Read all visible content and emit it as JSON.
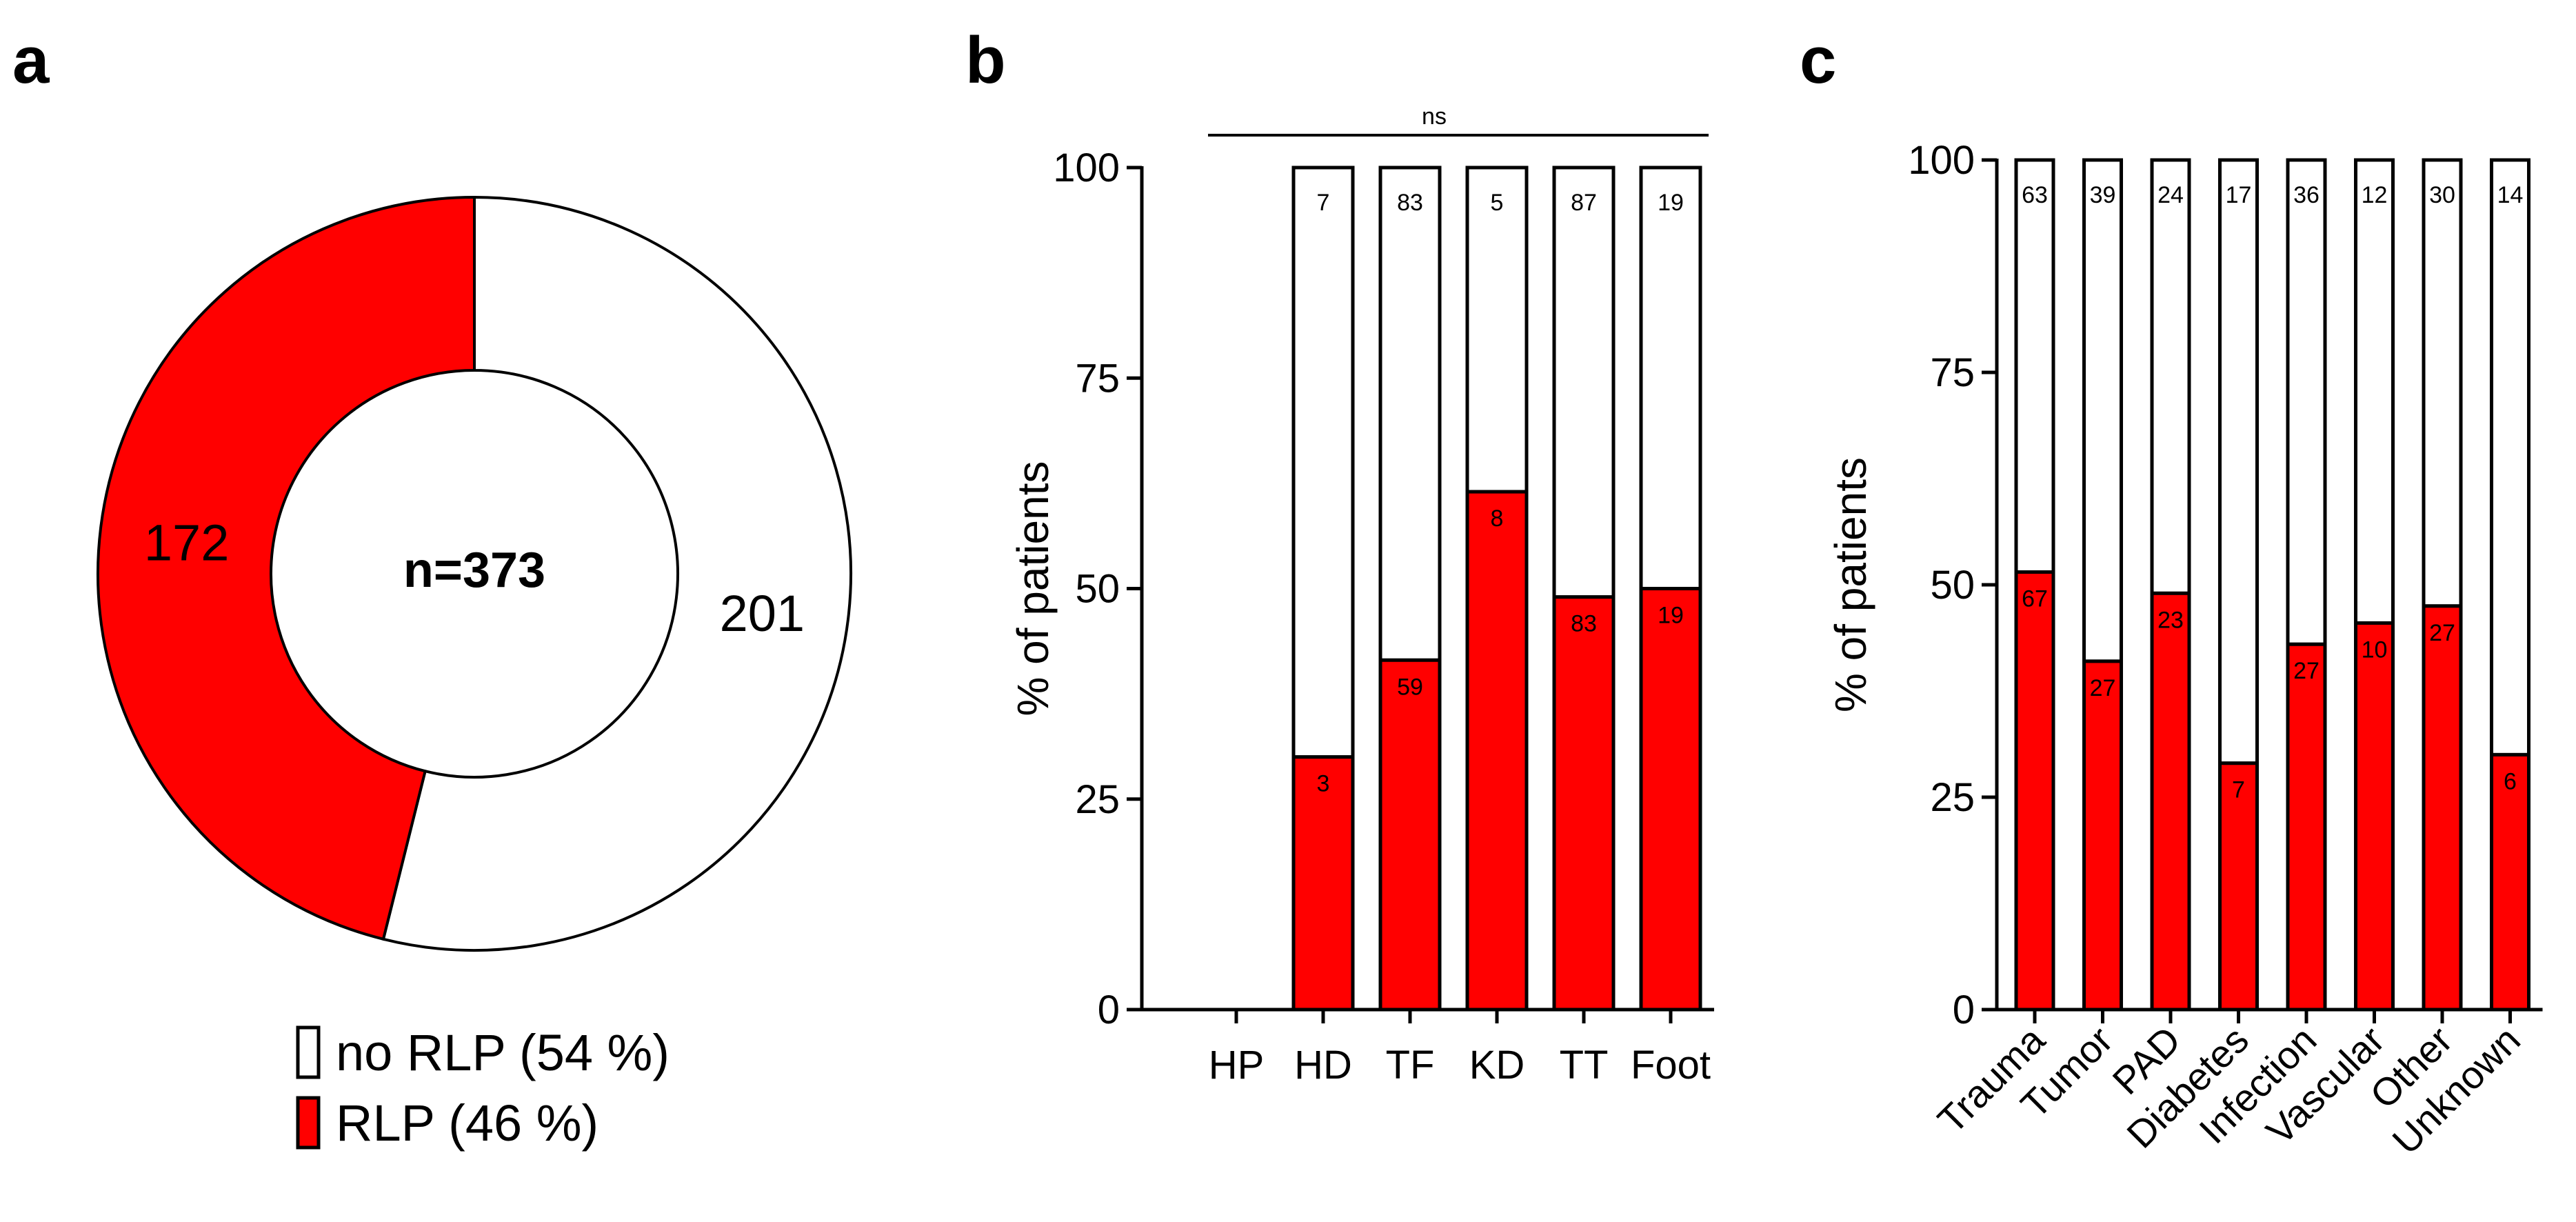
{
  "panels": {
    "a": "a",
    "b": "b",
    "c": "c"
  },
  "colors": {
    "rlp": "#ff0000",
    "no_rlp": "#ffffff",
    "stroke": "#000000"
  },
  "chart_data": [
    {
      "type": "pie",
      "panel": "a",
      "center_label": "n=373",
      "slices": [
        {
          "name": "no RLP",
          "value": 201,
          "label": "201",
          "color": "#ffffff"
        },
        {
          "name": "RLP",
          "value": 172,
          "label": "172",
          "color": "#ff0000"
        }
      ],
      "legend": [
        {
          "text": "no RLP (54 %)",
          "color": "#ffffff"
        },
        {
          "text": "RLP (46 %)",
          "color": "#ff0000"
        }
      ]
    },
    {
      "type": "bar",
      "stacked": true,
      "panel": "b",
      "ylabel": "% of patients",
      "ylim": [
        0,
        100
      ],
      "yticks": [
        0,
        25,
        50,
        75,
        100
      ],
      "categories": [
        "HP",
        "HD",
        "TF",
        "KD",
        "TT",
        "Foot"
      ],
      "significance": "ns",
      "series": [
        {
          "name": "RLP",
          "percent": [
            null,
            30,
            41.5,
            61.5,
            49,
            50
          ],
          "labels": [
            "",
            "3",
            "59",
            "8",
            "83",
            "19"
          ]
        },
        {
          "name": "no RLP",
          "percent": [
            null,
            70,
            58.5,
            38.5,
            51,
            50
          ],
          "labels": [
            "",
            "7",
            "83",
            "5",
            "87",
            "19"
          ]
        }
      ]
    },
    {
      "type": "bar",
      "stacked": true,
      "panel": "c",
      "ylabel": "% of patients",
      "ylim": [
        0,
        100
      ],
      "yticks": [
        0,
        25,
        50,
        75,
        100
      ],
      "categories": [
        "Trauma",
        "Tumor",
        "PAD",
        "Diabetes",
        "Infection",
        "Vascular",
        "Other",
        "Unknown"
      ],
      "series": [
        {
          "name": "RLP",
          "percent": [
            51.5,
            41,
            49,
            29,
            43,
            45.5,
            47.5,
            30
          ],
          "labels": [
            "67",
            "27",
            "23",
            "7",
            "27",
            "10",
            "27",
            "6"
          ]
        },
        {
          "name": "no RLP",
          "percent": [
            48.5,
            59,
            51,
            71,
            57,
            54.5,
            52.5,
            70
          ],
          "labels": [
            "63",
            "39",
            "24",
            "17",
            "36",
            "12",
            "30",
            "14"
          ]
        }
      ]
    }
  ]
}
